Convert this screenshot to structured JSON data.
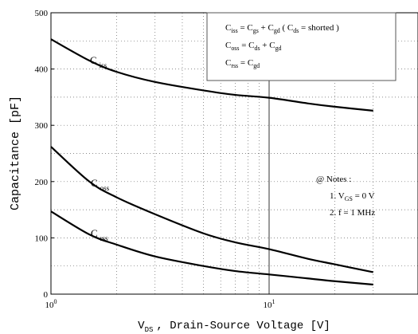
{
  "chart_data": {
    "type": "line",
    "x_scale": "log",
    "xlim": [
      1,
      30
    ],
    "ylim": [
      0,
      500
    ],
    "grid": true,
    "xlabel": {
      "main": "V",
      "sub": "DS",
      "rest": ", Drain-Source Voltage [V]"
    },
    "ylabel": "Capacitance  [pF]",
    "y_ticks": [
      "0",
      "100",
      "200",
      "300",
      "400",
      "500"
    ],
    "x_ticks": [
      {
        "base": "10",
        "exp": "0"
      },
      {
        "base": "10",
        "exp": "1"
      }
    ],
    "series": [
      {
        "name": "Ciss",
        "label": {
          "main": "C",
          "sub": "iss"
        },
        "x": [
          1,
          1.5,
          2,
          3,
          5,
          7,
          10,
          15,
          20,
          30
        ],
        "y": [
          453,
          415,
          395,
          377,
          362,
          354,
          349,
          339,
          333,
          326
        ]
      },
      {
        "name": "Coss",
        "label": {
          "main": "C",
          "sub": "oss"
        },
        "x": [
          1,
          1.5,
          2,
          3,
          5,
          7,
          10,
          15,
          20,
          30
        ],
        "y": [
          262,
          200,
          172,
          142,
          108,
          92,
          80,
          63,
          53,
          39
        ]
      },
      {
        "name": "Crss",
        "label": {
          "main": "C",
          "sub": "rss"
        },
        "x": [
          1,
          1.5,
          2,
          3,
          5,
          7,
          10,
          15,
          20,
          30
        ],
        "y": [
          147,
          106,
          88,
          67,
          50,
          41,
          35,
          28,
          23,
          17
        ]
      }
    ],
    "legend_box": {
      "position": "top-right",
      "lines": [
        [
          {
            "t": "C"
          },
          {
            "t": "iss",
            "sub": true
          },
          {
            "t": " = C"
          },
          {
            "t": "gs",
            "sub": true
          },
          {
            "t": " + C"
          },
          {
            "t": "gd",
            "sub": true
          },
          {
            "t": "  ( C"
          },
          {
            "t": "ds",
            "sub": true
          },
          {
            "t": " = shorted )"
          }
        ],
        [
          {
            "t": "C"
          },
          {
            "t": "oss",
            "sub": true
          },
          {
            "t": " = C"
          },
          {
            "t": "ds",
            "sub": true
          },
          {
            "t": " + C"
          },
          {
            "t": "gd",
            "sub": true
          }
        ],
        [
          {
            "t": "C"
          },
          {
            "t": "rss",
            "sub": true
          },
          {
            "t": " = C"
          },
          {
            "t": "gd",
            "sub": true
          }
        ]
      ]
    },
    "notes": {
      "lines": [
        [
          {
            "t": "@ Notes :"
          }
        ],
        [
          {
            "t": "1. V"
          },
          {
            "t": "GS",
            "sub": true
          },
          {
            "t": " = 0 V"
          }
        ],
        [
          {
            "t": "2. f = 1 MHz"
          }
        ]
      ]
    }
  }
}
